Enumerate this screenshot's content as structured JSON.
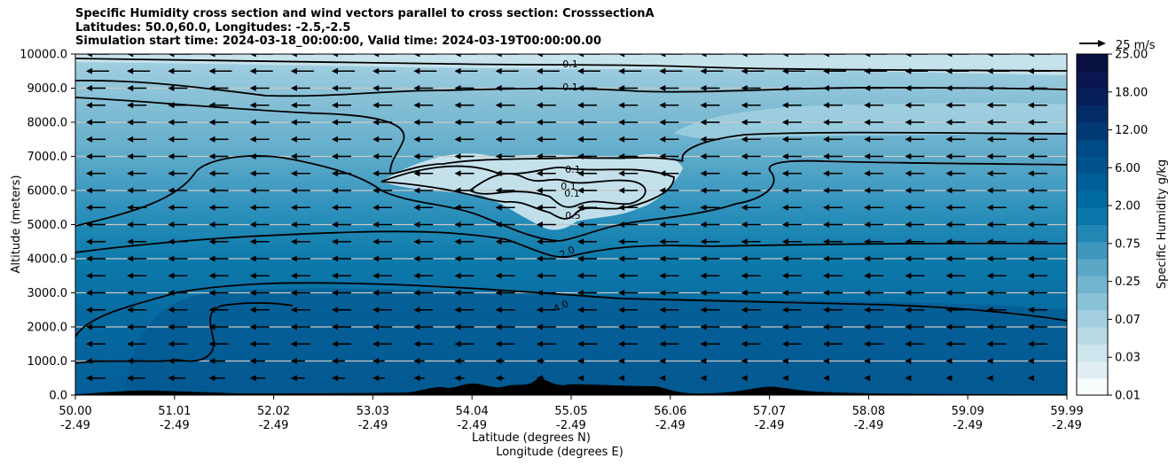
{
  "title_lines": [
    "Specific Humidity cross section and wind vectors parallel to cross section: CrosssectionA",
    "Latitudes: 50.0,60.0, Longitudes: -2.5,-2.5",
    "Simulation start time: 2024-03-18_00:00:00, Valid time: 2024-03-19T00:00:00.00"
  ],
  "chart_data": {
    "type": "heatmap",
    "subtype": "filled contour cross section with wind vectors",
    "ylabel": "Altitude (meters)",
    "xlabel_line1": "Latitude (degrees N)",
    "xlabel_line2": "Longitude (degrees E)",
    "ylim": [
      0,
      10000
    ],
    "yticks": [
      "0.0",
      "1000.0",
      "2000.0",
      "3000.0",
      "4000.0",
      "5000.0",
      "6000.0",
      "7000.0",
      "8000.0",
      "9000.0",
      "10000.0"
    ],
    "xticks": [
      {
        "lat": "50.00",
        "lon": "-2.49"
      },
      {
        "lat": "51.01",
        "lon": "-2.49"
      },
      {
        "lat": "52.02",
        "lon": "-2.49"
      },
      {
        "lat": "53.03",
        "lon": "-2.49"
      },
      {
        "lat": "54.04",
        "lon": "-2.49"
      },
      {
        "lat": "55.05",
        "lon": "-2.49"
      },
      {
        "lat": "56.06",
        "lon": "-2.49"
      },
      {
        "lat": "57.07",
        "lon": "-2.49"
      },
      {
        "lat": "58.08",
        "lon": "-2.49"
      },
      {
        "lat": "59.09",
        "lon": "-2.49"
      },
      {
        "lat": "59.99",
        "lon": "-2.49"
      }
    ],
    "grid": "horizontal",
    "colorbar": {
      "label": "Specific Humidity g/kg",
      "tick_labels": [
        "0.01",
        "0.03",
        "0.07",
        "0.25",
        "0.75",
        "2.00",
        "6.00",
        "12.00",
        "18.00",
        "25.00"
      ],
      "colors": [
        "#f7fcfd",
        "#e0eef3",
        "#cde5ec",
        "#b7dae5",
        "#a2cedf",
        "#8ac2d7",
        "#73b5cf",
        "#5aa7c6",
        "#3f97bd",
        "#2287b3",
        "#0a77ab",
        "#006aa2",
        "#005e98",
        "#00538d",
        "#004a85",
        "#023a75",
        "#042c66",
        "#07205a",
        "#0a1650",
        "#08103f"
      ]
    },
    "contour_labels": [
      "0.1",
      "0.1",
      "0.1",
      "0.1",
      "0.1",
      "0.5",
      "2.0",
      "4.0"
    ],
    "vector_key": "25 m/s",
    "wind_direction": "parallel to cross section, mostly toward lower latitude",
    "terrain_color": "#000000"
  }
}
